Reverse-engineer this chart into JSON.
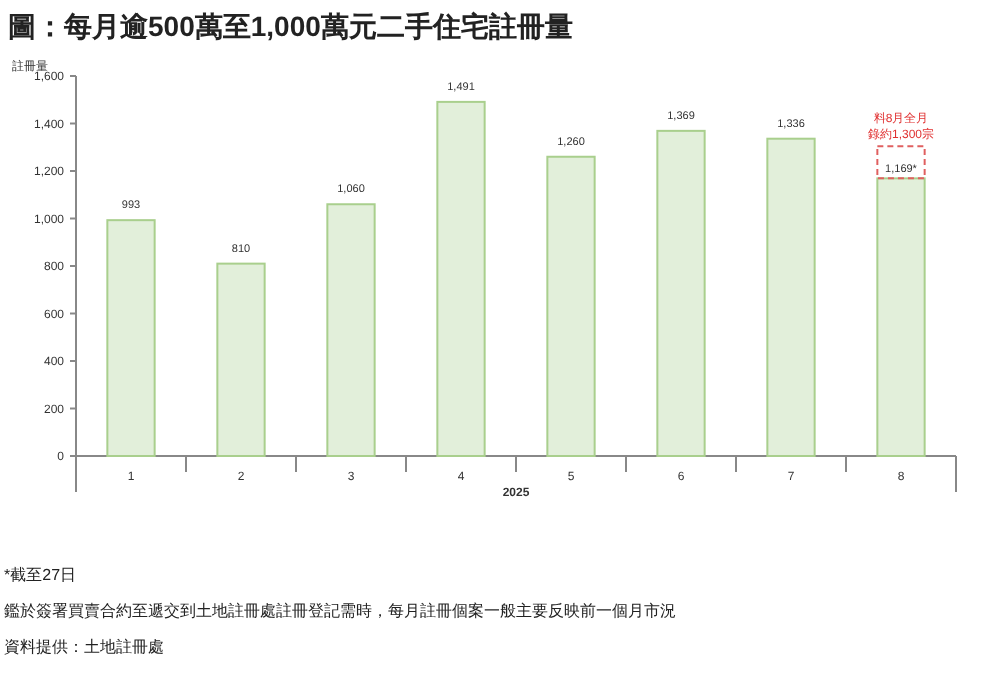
{
  "chart_data": {
    "type": "bar",
    "title": "圖：每月逾500萬至1,000萬元二手住宅註冊量",
    "ylabel": "註冊量",
    "xlabel": "2025",
    "categories": [
      "1",
      "2",
      "3",
      "4",
      "5",
      "6",
      "7",
      "8"
    ],
    "values": [
      993,
      810,
      1060,
      1491,
      1260,
      1369,
      1336,
      1169
    ],
    "value_labels": [
      "993",
      "810",
      "1,060",
      "1,491",
      "1,260",
      "1,369",
      "1,336",
      "1,169*"
    ],
    "color": "#e2efda",
    "ylim": [
      0,
      1600
    ],
    "yticks": [
      0,
      200,
      400,
      600,
      800,
      {
        "value": 1000,
        "label": "1,000"
      },
      {
        "value": 1200,
        "label": "1,200"
      },
      {
        "value": 1400,
        "label": "1,400"
      },
      {
        "value": 1600,
        "label": "1,600"
      }
    ],
    "grid": false,
    "annotations": [
      "料8月全月錄約1,300宗",
      "*截至27日",
      "鑑於簽署買賣合約至遞交到土地註冊處註冊登記需時，每月註冊個案一般主要反映前一個月市況",
      "資料提供：土地註冊處"
    ]
  }
}
